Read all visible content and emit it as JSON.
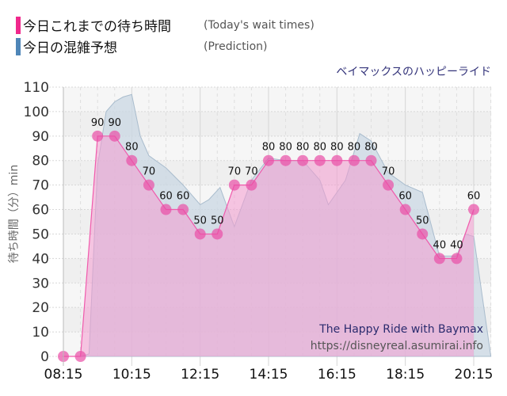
{
  "legend": {
    "actual": {
      "label_jp": "今日これまでの待ち時間",
      "label_en": "(Today's wait times)",
      "color": "#f0288c"
    },
    "prediction": {
      "label_jp": "今日の混雑予想",
      "label_en": "(Prediction)",
      "color": "#4f86b8"
    }
  },
  "ride_name_jp": "ベイマックスのハッピーライド",
  "watermark": {
    "title": "The Happy Ride with Baymax",
    "url": "https://disneyreal.asumirai.info"
  },
  "chart_data": {
    "type": "area",
    "title": "ベイマックスのハッピーライド",
    "xlabel": "",
    "ylabel": "待ち時間（分）min",
    "ylim": [
      0,
      110
    ],
    "yticks": [
      0,
      10,
      20,
      30,
      40,
      50,
      60,
      70,
      80,
      90,
      100,
      110
    ],
    "xticks": [
      "08:15",
      "10:15",
      "12:15",
      "14:15",
      "16:15",
      "18:15",
      "20:15"
    ],
    "xrange": [
      "08:15",
      "20:45"
    ],
    "grid": true,
    "legend_position": "top-left",
    "series": [
      {
        "name": "今日これまでの待ち時間 (Today's wait times)",
        "color": "#f0288c",
        "x": [
          "08:15",
          "08:45",
          "09:15",
          "09:45",
          "10:15",
          "10:45",
          "11:15",
          "11:45",
          "12:15",
          "12:45",
          "13:15",
          "13:45",
          "14:15",
          "14:45",
          "15:15",
          "15:45",
          "16:15",
          "16:45",
          "17:15",
          "17:45",
          "18:15",
          "18:45",
          "19:15",
          "19:45",
          "20:15"
        ],
        "values": [
          0,
          0,
          90,
          90,
          80,
          70,
          60,
          60,
          50,
          50,
          70,
          70,
          80,
          80,
          80,
          80,
          80,
          80,
          80,
          70,
          60,
          50,
          40,
          40,
          60
        ],
        "labels_shown": [
          false,
          false,
          true,
          true,
          true,
          true,
          true,
          true,
          true,
          true,
          true,
          true,
          true,
          true,
          true,
          true,
          true,
          true,
          true,
          true,
          true,
          true,
          true,
          true,
          true
        ]
      },
      {
        "name": "今日の混雑予想 (Prediction)",
        "color": "#4f86b8",
        "x": [
          "08:15",
          "08:45",
          "09:00",
          "09:15",
          "09:30",
          "09:45",
          "10:00",
          "10:15",
          "10:30",
          "10:45",
          "11:15",
          "11:45",
          "12:15",
          "12:30",
          "12:50",
          "13:15",
          "13:45",
          "14:15",
          "14:45",
          "15:15",
          "15:45",
          "16:00",
          "16:30",
          "16:55",
          "17:15",
          "17:45",
          "18:15",
          "18:45",
          "19:15",
          "19:45",
          "20:00",
          "20:15",
          "20:45"
        ],
        "values": [
          0,
          0,
          1,
          78,
          100,
          104,
          106,
          107,
          90,
          82,
          77,
          70,
          62,
          64,
          69,
          53,
          72,
          81,
          80,
          80,
          72,
          62,
          72,
          91,
          88,
          75,
          70,
          67,
          41,
          41,
          50,
          49,
          0
        ]
      }
    ]
  }
}
